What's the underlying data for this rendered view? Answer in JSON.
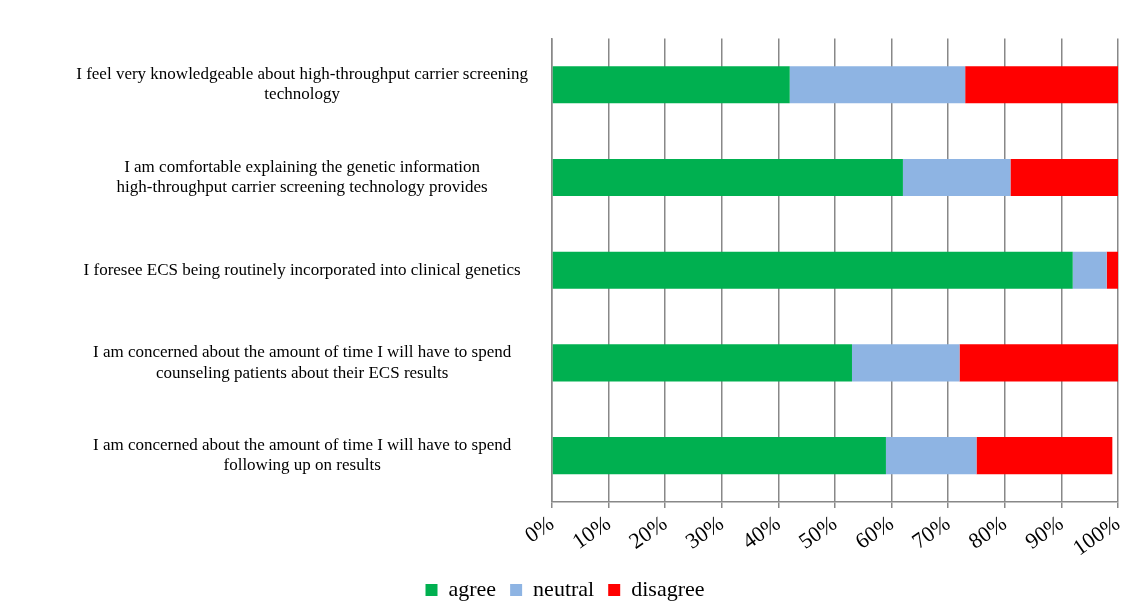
{
  "chart_data": {
    "type": "bar",
    "orientation": "horizontal",
    "stacked": true,
    "categories": [
      "I feel very knowledgeable about high-throughput carrier screening technology",
      "I am comfortable explaining the genetic information high-throughput carrier screening technology provides",
      "I foresee ECS being routinely incorporated into clinical genetics",
      "I am concerned about the amount of time I will have to spend counseling patients about their ECS results",
      "I am concerned about the amount of time I will have to spend following up on results"
    ],
    "series": [
      {
        "name": "agree",
        "color": "#00b050",
        "values": [
          42,
          62,
          92,
          53,
          59
        ]
      },
      {
        "name": "neutral",
        "color": "#8eb4e3",
        "values": [
          31,
          19,
          6,
          19,
          16
        ]
      },
      {
        "name": "disagree",
        "color": "#ff0000",
        "values": [
          27,
          19,
          2,
          28,
          24
        ]
      }
    ],
    "xlim": [
      0,
      100
    ],
    "xticks": [
      {
        "value": 0,
        "label": "0%"
      },
      {
        "value": 10,
        "label": "10%"
      },
      {
        "value": 20,
        "label": "20%"
      },
      {
        "value": 30,
        "label": "30%"
      },
      {
        "value": 40,
        "label": "40%"
      },
      {
        "value": 50,
        "label": "50%"
      },
      {
        "value": 60,
        "label": "60%"
      },
      {
        "value": 70,
        "label": "70%"
      },
      {
        "value": 80,
        "label": "80%"
      },
      {
        "value": 90,
        "label": "90%"
      },
      {
        "value": 100,
        "label": "100%"
      }
    ],
    "grid": "x",
    "legend": "bottom"
  }
}
